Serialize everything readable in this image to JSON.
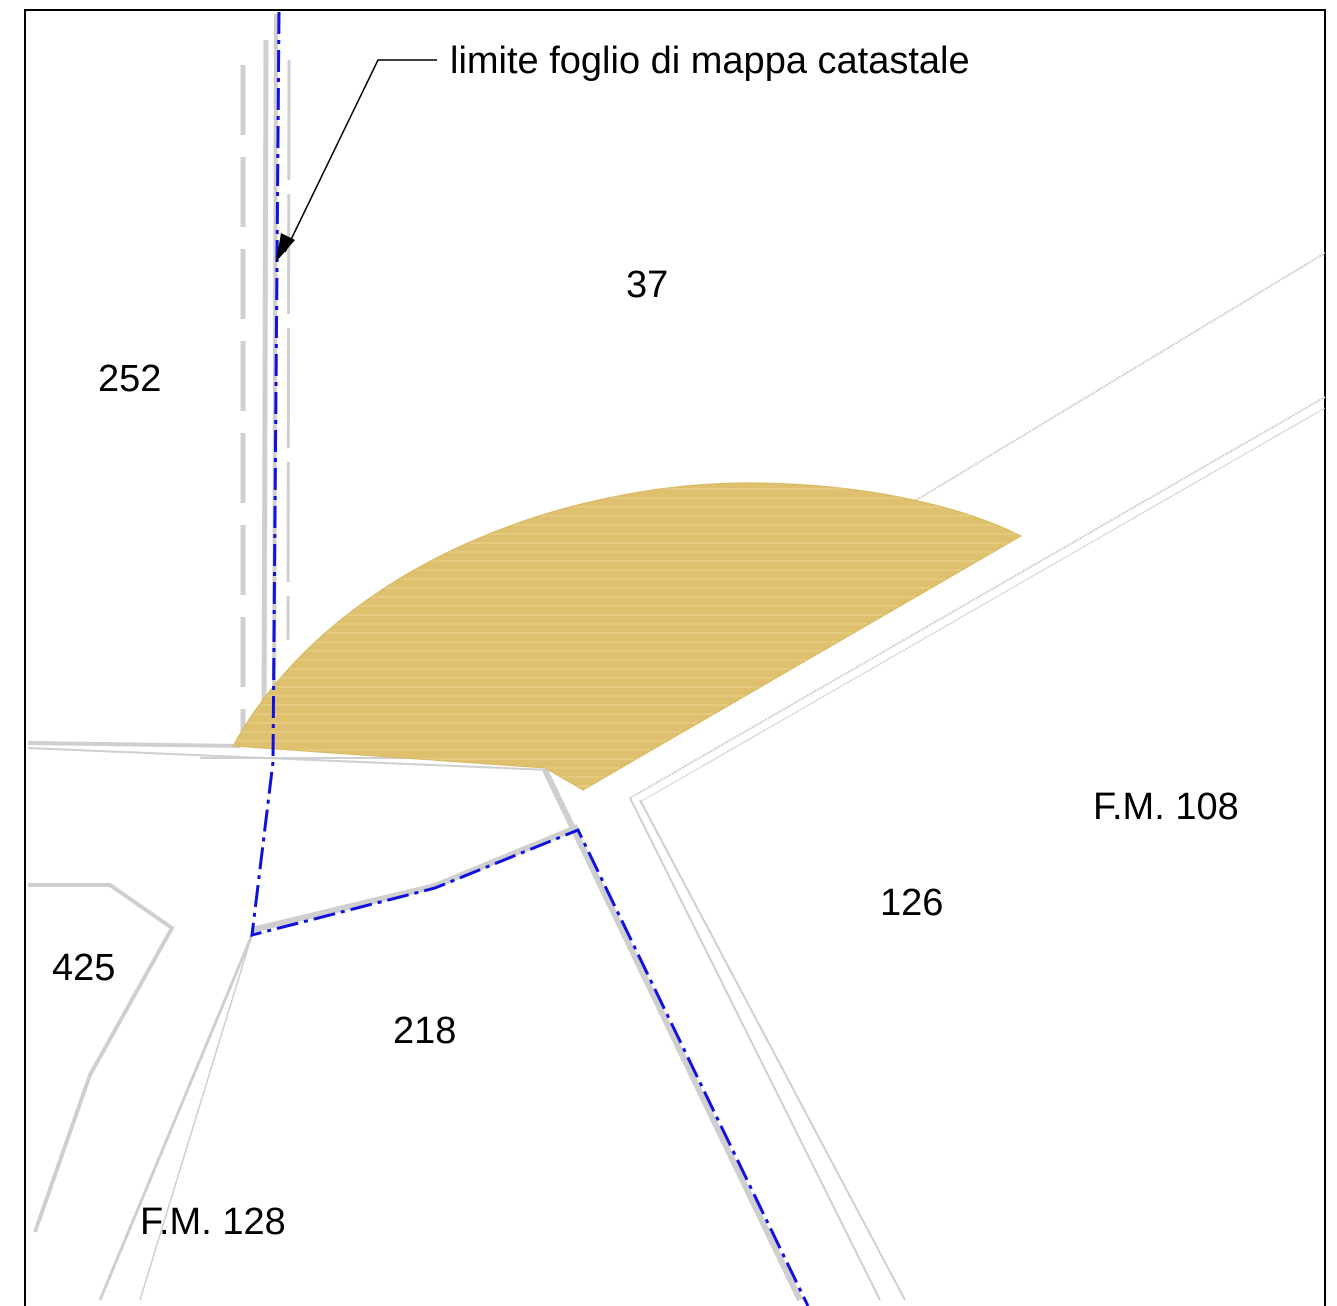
{
  "annotation": {
    "text": "limite foglio di mappa catastale"
  },
  "parcels": {
    "p37": "37",
    "p252": "252",
    "p425": "425",
    "p218": "218",
    "p126": "126"
  },
  "sheets": {
    "fm108": "F.M. 108",
    "fm128": "F.M. 128"
  },
  "colors": {
    "sheet_boundary": "#1010e0",
    "highlight_area": "#dfc06e",
    "parcel_lines": "#cfcfcf",
    "frame": "#000000"
  },
  "legend": {
    "sheet_boundary_icon": "dash-dot-line",
    "highlight_icon": "hatched-area"
  }
}
